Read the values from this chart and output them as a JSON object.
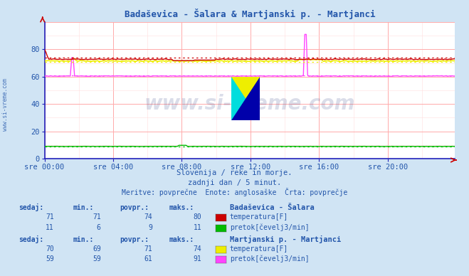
{
  "title": "Badaševica - Šalara & Martjanski p. - Martjanci",
  "bg_color": "#d0e4f4",
  "plot_bg_color": "#ffffff",
  "grid_major_color": "#ffaaaa",
  "grid_minor_color": "#ffdddd",
  "x_labels": [
    "sre 00:00",
    "sre 04:00",
    "sre 08:00",
    "sre 12:00",
    "sre 16:00",
    "sre 20:00"
  ],
  "x_ticks_idx": [
    0,
    48,
    96,
    144,
    192,
    240
  ],
  "total_points": 288,
  "ylim": [
    0,
    100
  ],
  "yticks": [
    0,
    20,
    40,
    60,
    80
  ],
  "subtitle1": "Slovenija / reke in morje.",
  "subtitle2": "zadnji dan / 5 minut.",
  "subtitle3": "Meritve: povprečne  Enote: anglosaške  Črta: povprečje",
  "watermark": "www.si-vreme.com",
  "sidebar_text": "www.si-vreme.com",
  "color_bad_temp": "#cc0000",
  "color_bad_flow": "#00bb00",
  "color_mart_temp": "#eeee00",
  "color_mart_flow": "#ff44ff",
  "text_color": "#2255aa",
  "axis_color": "#2222bb",
  "station1_name": "Badaševica - Šalara",
  "station2_name": "Martjanski p. - Martjanci",
  "label_temp": "temperatura[F]",
  "label_flow": "pretok[čevelj3/min]",
  "s1_temp_sedaj": 71,
  "s1_temp_min": 71,
  "s1_temp_povpr": 74,
  "s1_temp_maks": 80,
  "s1_flow_sedaj": 11,
  "s1_flow_min": 6,
  "s1_flow_povpr": 9,
  "s1_flow_maks": 11,
  "s2_temp_sedaj": 70,
  "s2_temp_min": 69,
  "s2_temp_povpr": 71,
  "s2_temp_maks": 74,
  "s2_flow_sedaj": 59,
  "s2_flow_min": 59,
  "s2_flow_povpr": 61,
  "s2_flow_maks": 91
}
